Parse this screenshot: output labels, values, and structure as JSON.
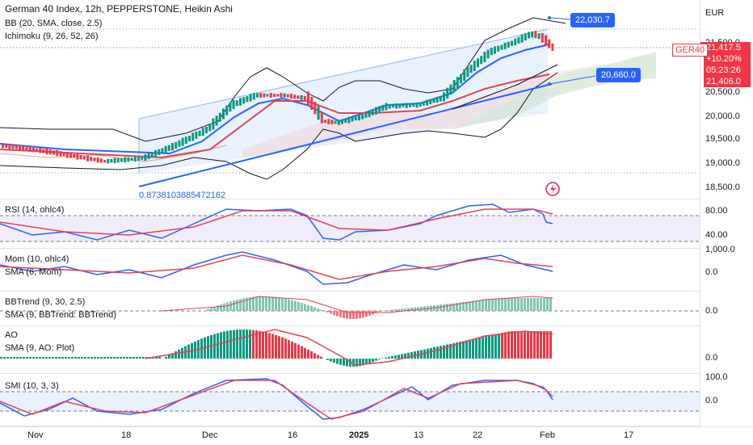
{
  "main": {
    "title": "German 40 Index, 12h, PEPPERSTONE, Heikin Ashi",
    "bb": "BB (20, SMA, close, 2.5)",
    "ichimoku": "Ichimoku (9, 26, 52, 26)",
    "currency": "EUR",
    "fib_label": "0.8738103885472162",
    "callout_high": "22,030.7",
    "callout_low": "20,660.0",
    "price_axis": [
      "21,500.0",
      "20,500.0",
      "20,000.0",
      "19,500.0",
      "19,000.0",
      "18,500.0"
    ],
    "symbol_tag": "GER40",
    "price": "21,417.5",
    "change": "+10.20%",
    "countdown": "05:23:26",
    "low_tag": "21,406.0"
  },
  "panes": {
    "rsi": {
      "label": "RSI (14, ohlc4)",
      "ticks": [
        "80.00",
        "40.00"
      ]
    },
    "mom": {
      "label": "Mom (10, ohlc4)",
      "label2": "SMA (6, Mom)",
      "ticks": [
        "1,000.0",
        "0.0"
      ]
    },
    "bbtrend": {
      "label": "BBTrend (9, 30, 2.5)",
      "label2": "SMA (9, BBTrend: BBTrend)",
      "ticks": [
        "0.0"
      ]
    },
    "ao": {
      "label": "AO",
      "label2": "SMA (9, AO: Plot)",
      "ticks": [
        "0.0"
      ]
    },
    "smi": {
      "label": "SMI (10, 3, 3)",
      "ticks": [
        "100.0",
        "0.0"
      ]
    }
  },
  "time_axis": [
    "Nov",
    "18",
    "Dec",
    "16",
    "2025",
    "13",
    "22",
    "Feb",
    "17"
  ],
  "colors": {
    "up": "#089981",
    "down": "#f23645",
    "blue": "#2962ff",
    "red": "#f23645",
    "accent": "#2962ff"
  }
}
